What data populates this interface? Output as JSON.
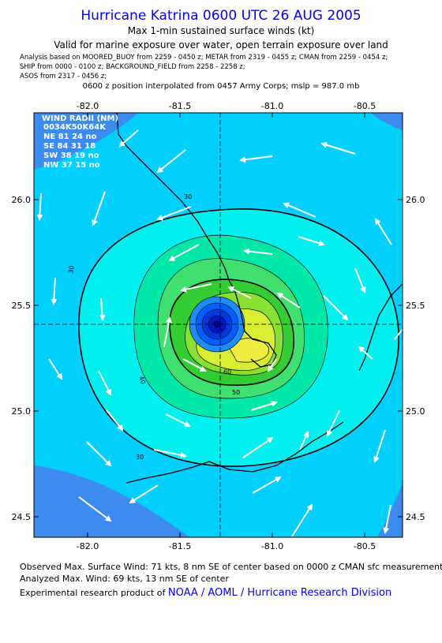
{
  "header": {
    "title": "Hurricane Katrina 0600 UTC 26 AUG 2005",
    "subtitle": "Max 1-min sustained surface winds (kt)",
    "validity": "Valid for marine exposure over water, open terrain exposure over land",
    "sources": [
      "Analysis based on  MOORED_BUOY from 2259 - 0450 z;  METAR from 2319 - 0455 z;  CMAN from 2259 - 0454 z;",
      "SHIP from 0000 - 0100 z;  BACKGROUND_FIELD from 2258 - 2258 z;",
      "ASOS from 2317 - 0456 z;"
    ],
    "position_note": "0600 z position interpolated from 0457 Army Corps; mslp = 987.0 mb"
  },
  "map": {
    "lon_ticks": [
      {
        "value": -82,
        "label": "-82.0"
      },
      {
        "value": -81.5,
        "label": "-81.5"
      },
      {
        "value": -81,
        "label": "-81.0"
      },
      {
        "value": -80.5,
        "label": "-80.5"
      }
    ],
    "lat_ticks": [
      {
        "value": 26,
        "label": "26.0"
      },
      {
        "value": 25.5,
        "label": "25.5"
      },
      {
        "value": 25,
        "label": "25.0"
      },
      {
        "value": 24.5,
        "label": "24.5"
      }
    ],
    "contour_labels": [
      "30",
      "30",
      "30",
      "40",
      "50",
      "60"
    ],
    "wind_radii": {
      "title": "WIND RADII (NM)",
      "header": "0034K50K64K",
      "rows": [
        "NE 81 24 no",
        "SE 84 31 18",
        "SW 38 19 no",
        "NW 37 15 no"
      ]
    }
  },
  "footer": {
    "observed": "Observed Max. Surface Wind: 71 kts, 8 nm SE of center based on 0000 z CMAN sfc measurement",
    "analyzed": "Analyzed Max. Wind: 69 kts, 13 nm SE of center",
    "credit": "Experimental research product of ",
    "link": "NOAA / AOML / Hurricane Research Division"
  }
}
